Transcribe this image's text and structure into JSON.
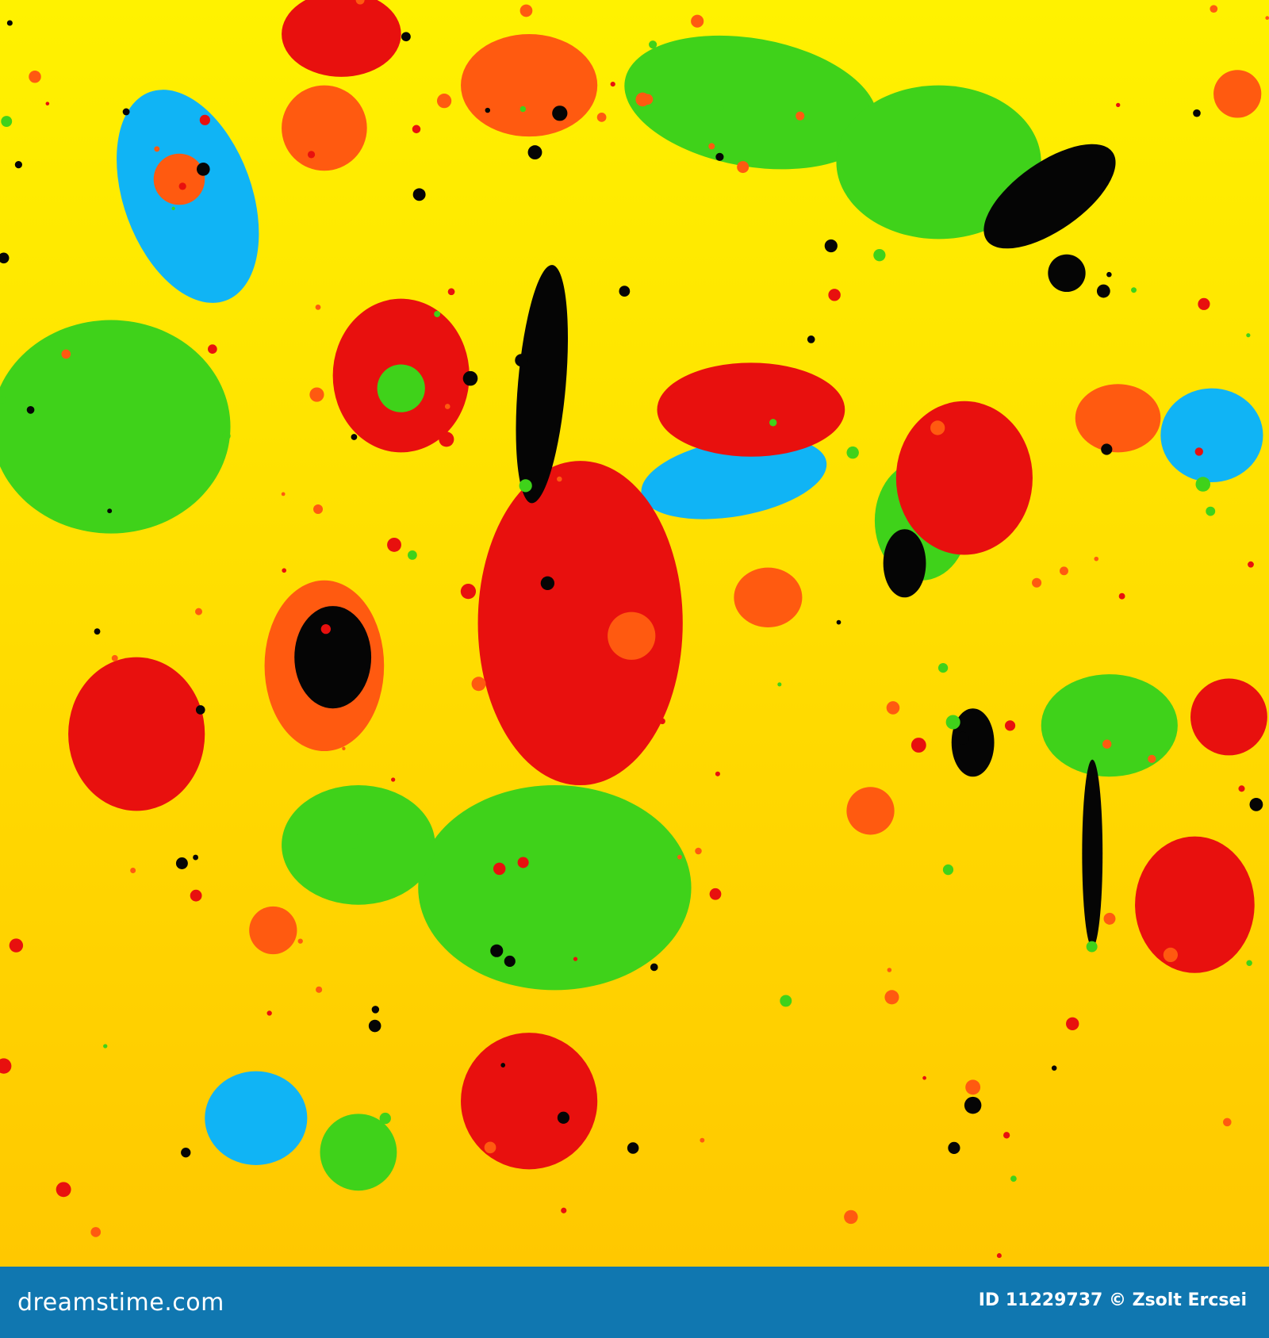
{
  "image": {
    "background_colors": [
      "#fff200",
      "#ffc800"
    ],
    "paint_colors": {
      "blue": "#10b4f5",
      "green": "#3fd21a",
      "red": "#e8100e",
      "orange": "#ff5a10",
      "black": "#050505"
    }
  },
  "footer": {
    "brand": "dreamstime.com",
    "credit": "ID 11229737 © Zsolt Ercsei",
    "background_color": "#1077b0"
  }
}
